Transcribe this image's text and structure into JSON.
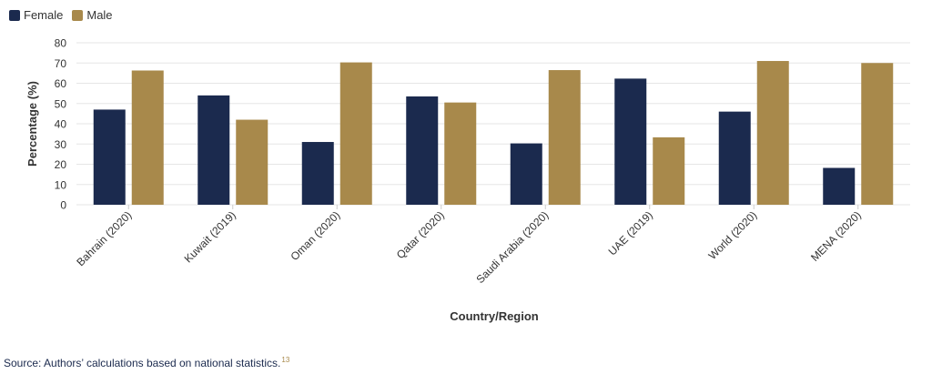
{
  "legend": {
    "female_label": "Female",
    "male_label": "Male"
  },
  "colors": {
    "female": "#1b2a4e",
    "male": "#a8894b",
    "grid": "#e6e6e6",
    "axis_text": "#333333"
  },
  "chart_data": {
    "type": "bar",
    "categories": [
      "Bahrain (2020)",
      "Kuwait (2019)",
      "Oman (2020)",
      "Qatar (2020)",
      "Saudi Arabia (2020)",
      "UAE (2019)",
      "World (2020)",
      "MENA (2020)"
    ],
    "series": [
      {
        "name": "Female",
        "values": [
          47,
          54,
          31,
          53.5,
          30.3,
          62.3,
          46,
          18.2
        ]
      },
      {
        "name": "Male",
        "values": [
          66.3,
          42,
          70.3,
          50.5,
          66.5,
          33.3,
          71,
          70
        ]
      }
    ],
    "xlabel": "Country/Region",
    "ylabel": "Percentage (%)",
    "ylim": [
      0,
      80
    ],
    "yticks": [
      0,
      10,
      20,
      30,
      40,
      50,
      60,
      70,
      80
    ],
    "grid": true,
    "legend_position": "top-left"
  },
  "source": {
    "text": "Source: Authors’ calculations based on national statistics.",
    "footnote": "13"
  }
}
